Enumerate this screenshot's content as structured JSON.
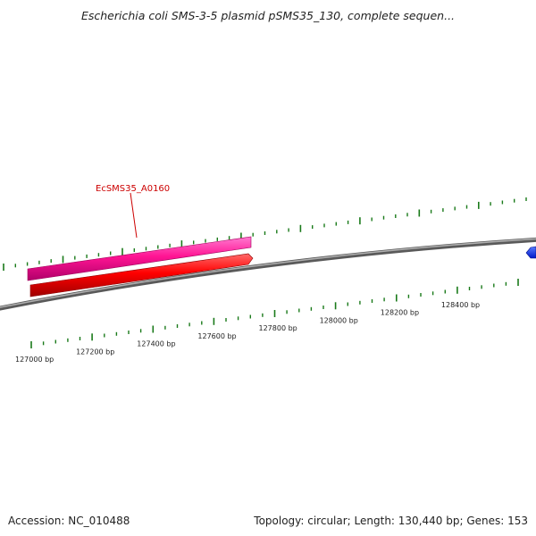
{
  "title": "Escherichia coli SMS-3-5 plasmid pSMS35_130, complete sequen...",
  "footer": {
    "accession": "Accession: NC_010488",
    "summary": "Topology: circular; Length: 130,440 bp; Genes: 153"
  },
  "scale": {
    "unit": "bp",
    "labels": [
      "127000 bp",
      "127200 bp",
      "127400 bp",
      "127600 bp",
      "127800 bp",
      "128000 bp",
      "128200 bp",
      "128400 bp"
    ]
  },
  "genes": [
    {
      "name": "EcSMS35_A0160",
      "color": "#ff1493",
      "type": "feature"
    },
    {
      "name": "",
      "color": "#ff0000",
      "type": "gene"
    },
    {
      "name": "",
      "color": "#0000ff",
      "type": "gene"
    }
  ],
  "colors": {
    "backbone": "#808080",
    "ticks": "#1a7a1a",
    "gene_label": "#cc0000"
  }
}
